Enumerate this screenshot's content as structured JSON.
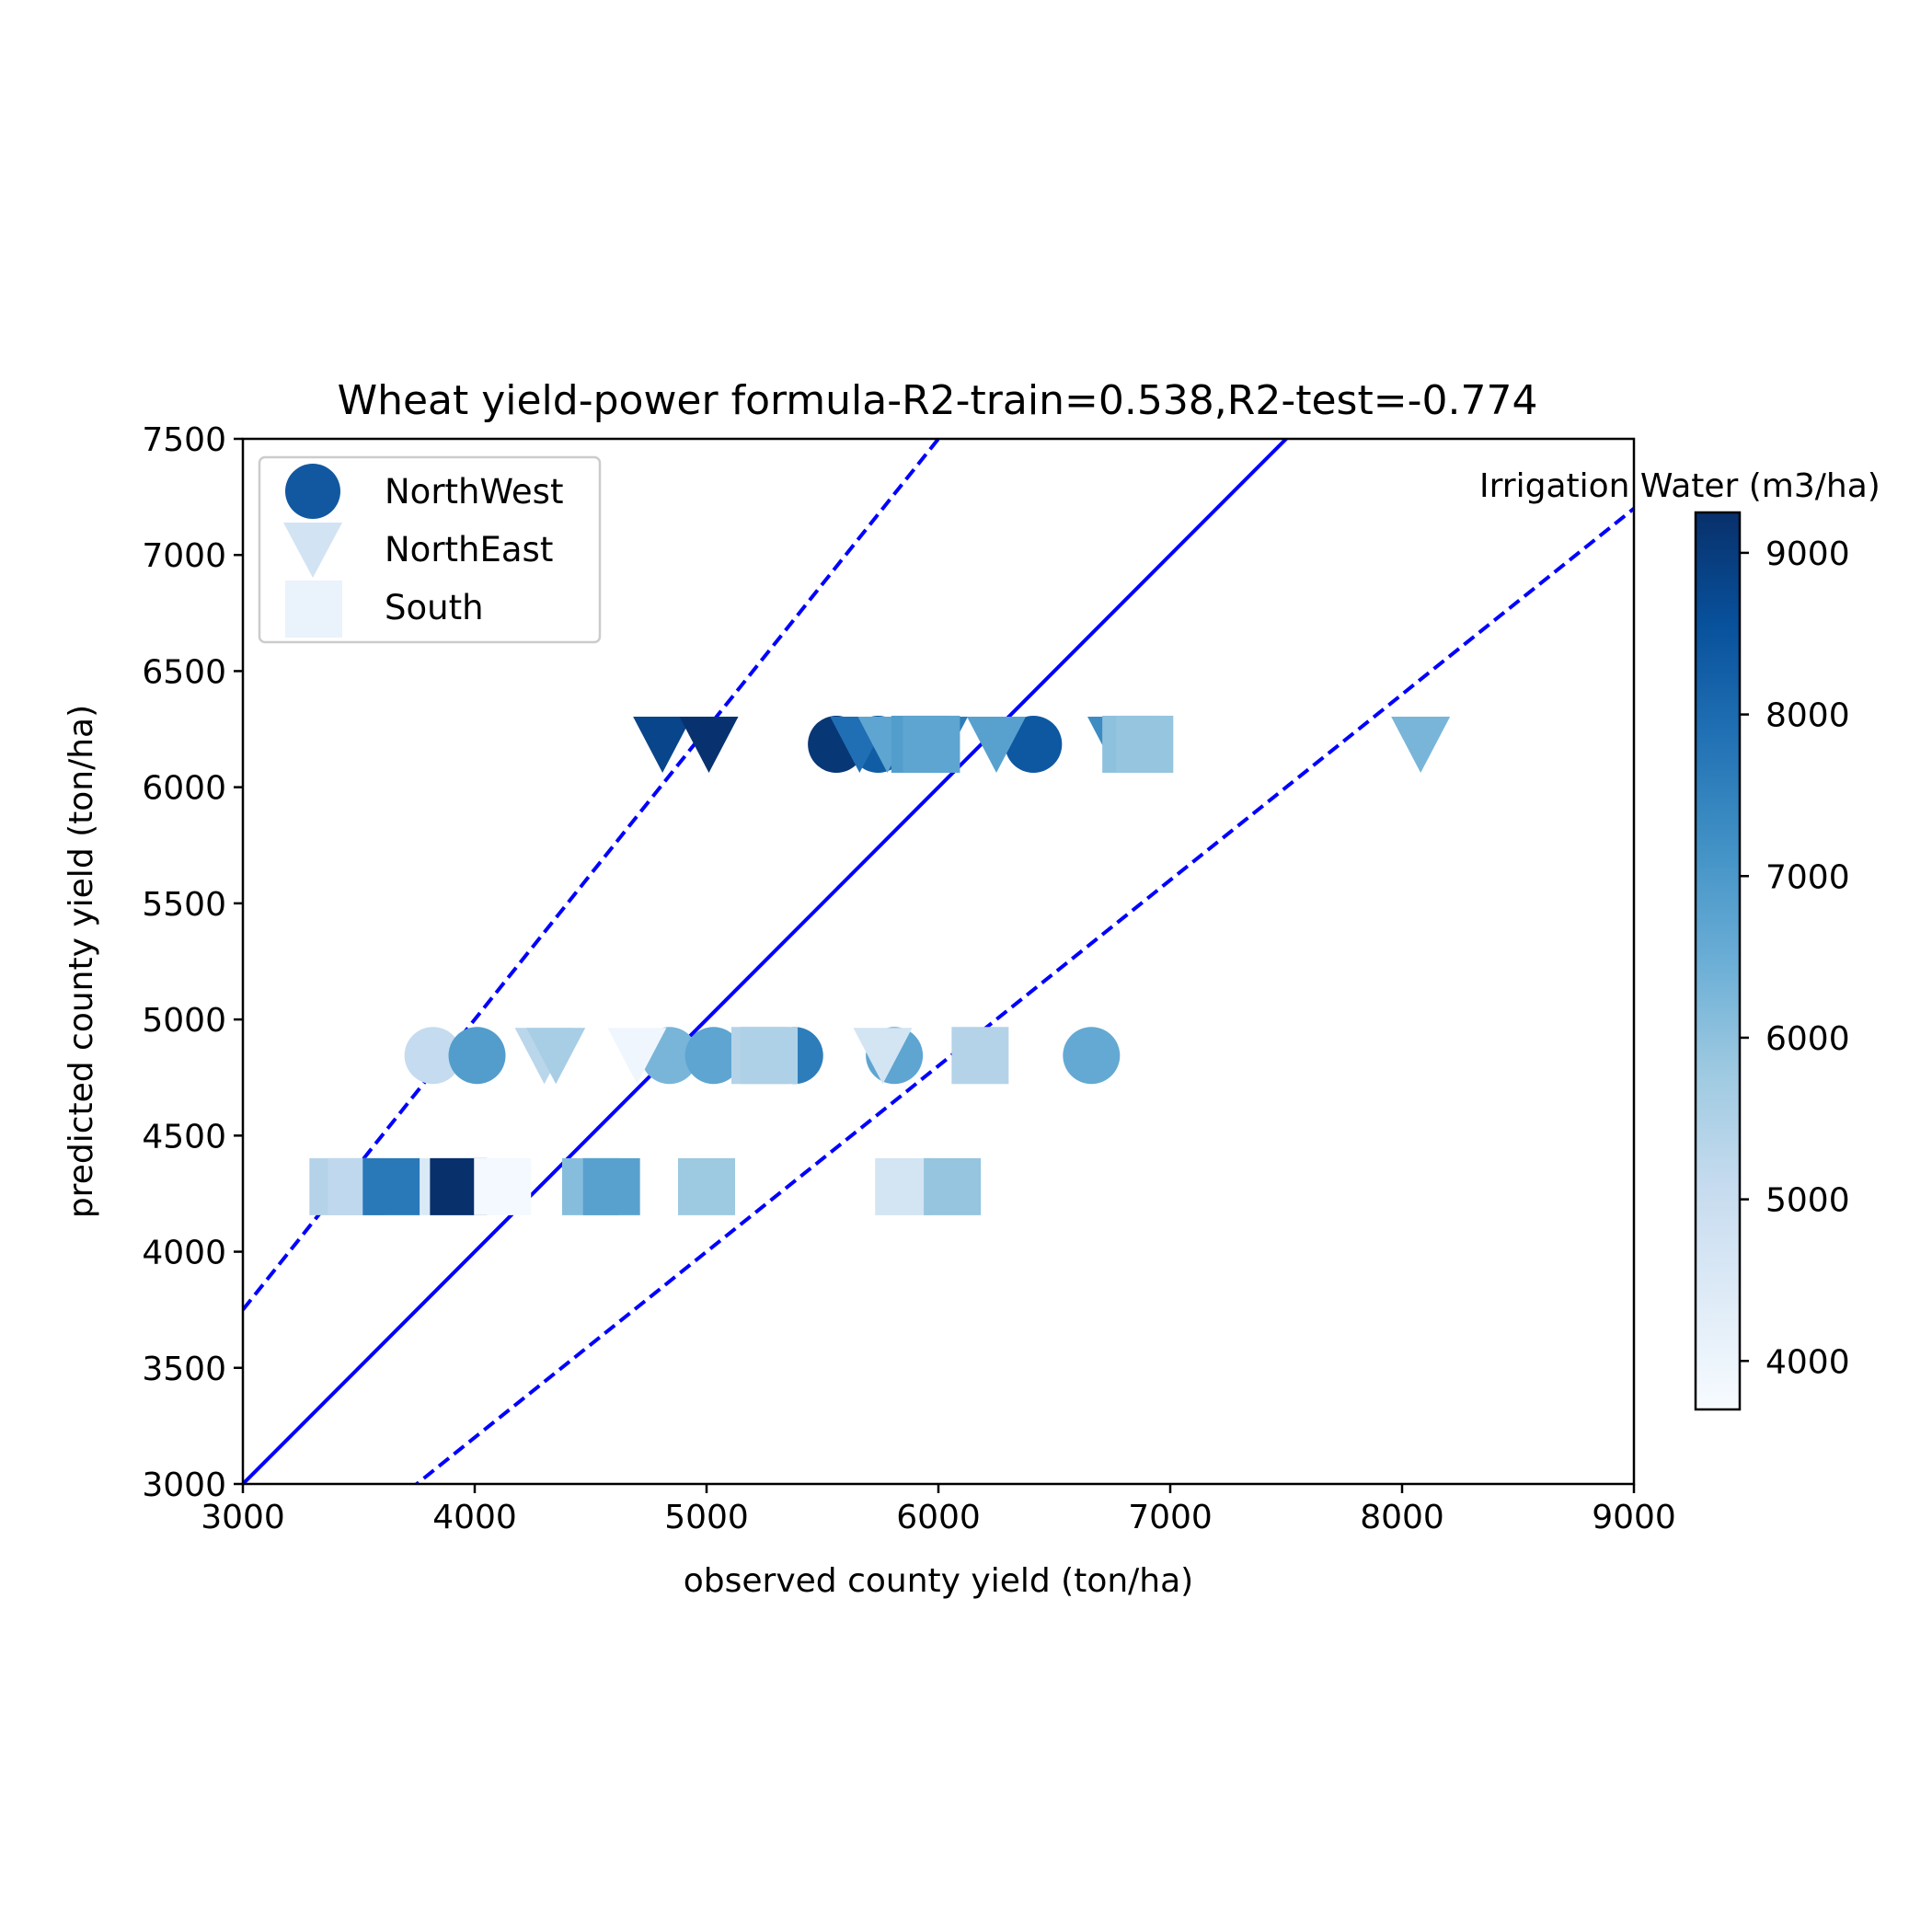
{
  "chart_data": {
    "type": "scatter",
    "title": "Wheat yield-power formula-R2-train=0.538,R2-test=-0.774",
    "xlabel": "observed county yield (ton/ha)",
    "ylabel": "predicted county yield (ton/ha)",
    "xlim": [
      3000,
      9000
    ],
    "ylim": [
      3000,
      7500
    ],
    "xticks": [
      3000,
      4000,
      5000,
      6000,
      7000,
      8000,
      9000
    ],
    "yticks": [
      3000,
      3500,
      4000,
      4500,
      5000,
      5500,
      6000,
      6500,
      7000,
      7500
    ],
    "grid": false,
    "legend": {
      "location": "upper-left",
      "entries": [
        {
          "label": "NorthWest",
          "marker": "circle",
          "color": "#1158a0"
        },
        {
          "label": "NorthEast",
          "marker": "triangle-down",
          "color": "#d2e3f3"
        },
        {
          "label": "South",
          "marker": "square",
          "color": "#eaf2fb"
        }
      ]
    },
    "colorbar": {
      "label": "Irrigation Water (m3/ha)",
      "colormap": "Blues",
      "range": [
        3700,
        9250
      ],
      "ticks": [
        4000,
        5000,
        6000,
        7000,
        8000,
        9000
      ]
    },
    "reference_lines": [
      {
        "name": "1:1",
        "style": "solid",
        "color": "#0000ff",
        "slope": 1.0
      },
      {
        "name": "upper",
        "style": "dashed",
        "color": "#0000ff",
        "slope": 1.25
      },
      {
        "name": "lower",
        "style": "dashed",
        "color": "#0000ff",
        "slope": 0.8
      }
    ],
    "series": [
      {
        "name": "NorthWest",
        "marker": "circle",
        "points": [
          {
            "x": 5560,
            "y": 6185,
            "c": 9100
          },
          {
            "x": 5740,
            "y": 6185,
            "c": 8300
          },
          {
            "x": 6410,
            "y": 6185,
            "c": 8400
          },
          {
            "x": 3820,
            "y": 4845,
            "c": 5100
          },
          {
            "x": 4010,
            "y": 4845,
            "c": 6900
          },
          {
            "x": 4840,
            "y": 4845,
            "c": 6300
          },
          {
            "x": 5030,
            "y": 4845,
            "c": 6700
          },
          {
            "x": 5380,
            "y": 4845,
            "c": 7600
          },
          {
            "x": 5810,
            "y": 4845,
            "c": 6700
          },
          {
            "x": 6660,
            "y": 4845,
            "c": 6600
          }
        ]
      },
      {
        "name": "NorthEast",
        "marker": "triangle-down",
        "points": [
          {
            "x": 4810,
            "y": 6185,
            "c": 8800
          },
          {
            "x": 5010,
            "y": 6185,
            "c": 9200
          },
          {
            "x": 5660,
            "y": 6185,
            "c": 7900
          },
          {
            "x": 5780,
            "y": 6185,
            "c": 6700
          },
          {
            "x": 6000,
            "y": 6185,
            "c": 7600
          },
          {
            "x": 6250,
            "y": 6185,
            "c": 6800
          },
          {
            "x": 6770,
            "y": 6185,
            "c": 7300
          },
          {
            "x": 8080,
            "y": 6185,
            "c": 6300
          },
          {
            "x": 4300,
            "y": 4845,
            "c": 5300
          },
          {
            "x": 4350,
            "y": 4845,
            "c": 5600
          },
          {
            "x": 4700,
            "y": 4845,
            "c": 3900
          },
          {
            "x": 5760,
            "y": 4845,
            "c": 4700
          }
        ]
      },
      {
        "name": "South",
        "marker": "square",
        "points": [
          {
            "x": 5920,
            "y": 6185,
            "c": 6900
          },
          {
            "x": 5970,
            "y": 6185,
            "c": 6700
          },
          {
            "x": 6830,
            "y": 6185,
            "c": 6000
          },
          {
            "x": 6890,
            "y": 6185,
            "c": 5900
          },
          {
            "x": 5230,
            "y": 4845,
            "c": 5400
          },
          {
            "x": 5270,
            "y": 4845,
            "c": 5500
          },
          {
            "x": 6180,
            "y": 4845,
            "c": 5400
          },
          {
            "x": 3410,
            "y": 4280,
            "c": 5400
          },
          {
            "x": 3490,
            "y": 4280,
            "c": 5200
          },
          {
            "x": 3640,
            "y": 4280,
            "c": 7700
          },
          {
            "x": 3890,
            "y": 4280,
            "c": 4500
          },
          {
            "x": 3930,
            "y": 4280,
            "c": 9300
          },
          {
            "x": 4120,
            "y": 4280,
            "c": 3800
          },
          {
            "x": 4500,
            "y": 4280,
            "c": 6100
          },
          {
            "x": 4590,
            "y": 4280,
            "c": 6800
          },
          {
            "x": 5000,
            "y": 4280,
            "c": 5800
          },
          {
            "x": 5850,
            "y": 4280,
            "c": 4700
          },
          {
            "x": 6060,
            "y": 4280,
            "c": 5900
          }
        ]
      }
    ]
  }
}
